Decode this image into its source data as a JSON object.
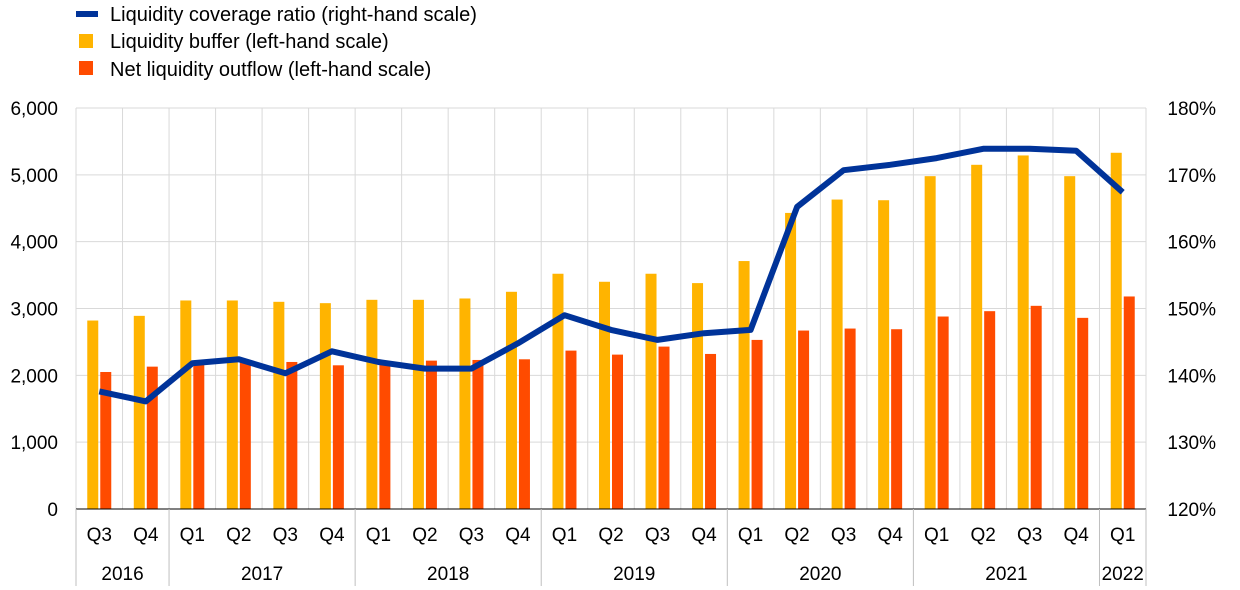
{
  "chart_data": {
    "type": "bar",
    "legend": {
      "placement": "top-left",
      "entries": [
        {
          "label": "Liquidity coverage ratio (right-hand scale)",
          "color": "#003399",
          "marker": "line"
        },
        {
          "label": "Liquidity buffer (left-hand scale)",
          "color": "#FFB400",
          "marker": "square"
        },
        {
          "label": "Net liquidity outflow (left-hand scale)",
          "color": "#FF4B00",
          "marker": "square"
        }
      ]
    },
    "categories": [
      "Q3",
      "Q4",
      "Q1",
      "Q2",
      "Q3",
      "Q4",
      "Q1",
      "Q2",
      "Q3",
      "Q4",
      "Q1",
      "Q2",
      "Q3",
      "Q4",
      "Q1",
      "Q2",
      "Q3",
      "Q4",
      "Q1",
      "Q2",
      "Q3",
      "Q4",
      "Q1"
    ],
    "year_groups": [
      {
        "label": "2016",
        "count": 2
      },
      {
        "label": "2017",
        "count": 4
      },
      {
        "label": "2018",
        "count": 4
      },
      {
        "label": "2019",
        "count": 4
      },
      {
        "label": "2020",
        "count": 4
      },
      {
        "label": "2021",
        "count": 4
      },
      {
        "label": "2022",
        "count": 1
      }
    ],
    "series": [
      {
        "name": "Liquidity buffer (left-hand scale)",
        "type": "bar",
        "axis": "left",
        "color": "#FFB400",
        "values": [
          2820,
          2890,
          3120,
          3120,
          3100,
          3080,
          3130,
          3130,
          3150,
          3250,
          3520,
          3400,
          3520,
          3380,
          3710,
          4430,
          4630,
          4620,
          4980,
          5150,
          5290,
          4980,
          5330
        ]
      },
      {
        "name": "Net liquidity outflow (left-hand scale)",
        "type": "bar",
        "axis": "left",
        "color": "#FF4B00",
        "values": [
          2050,
          2130,
          2160,
          2200,
          2200,
          2150,
          2160,
          2220,
          2230,
          2240,
          2370,
          2310,
          2430,
          2320,
          2530,
          2670,
          2700,
          2690,
          2880,
          2960,
          3040,
          2860,
          3180
        ]
      },
      {
        "name": "Liquidity coverage ratio (right-hand scale)",
        "type": "line",
        "axis": "right",
        "color": "#003399",
        "values": [
          137.6,
          136.1,
          141.8,
          142.4,
          140.3,
          143.6,
          142.0,
          141.0,
          141.0,
          144.8,
          149.0,
          146.8,
          145.3,
          146.3,
          146.8,
          165.2,
          170.7,
          171.5,
          172.5,
          173.9,
          173.9,
          173.6,
          167.4
        ]
      }
    ],
    "y_left": {
      "min": 0,
      "max": 6000,
      "step": 1000,
      "tick_labels": [
        "0",
        "1,000",
        "2,000",
        "3,000",
        "4,000",
        "5,000",
        "6,000"
      ]
    },
    "y_right": {
      "min": 120,
      "max": 180,
      "step": 10,
      "tick_labels": [
        "120%",
        "130%",
        "140%",
        "150%",
        "160%",
        "170%",
        "180%"
      ]
    },
    "grid": true
  }
}
